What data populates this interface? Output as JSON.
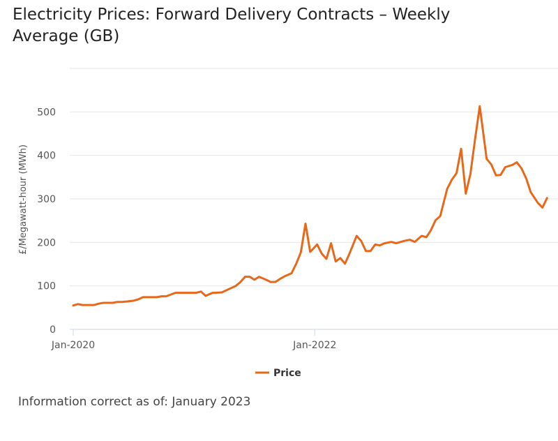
{
  "title": "Electricity Prices: Forward Delivery Contracts – Weekly Average (GB)",
  "footnote": "Information correct as of: January 2023",
  "colors": {
    "series": "#e8681a",
    "grid": "#e6e6e6",
    "axis": "#ccd6eb"
  },
  "chart_data": {
    "type": "line",
    "title": "Electricity Prices: Forward Delivery Contracts – Weekly Average (GB)",
    "xlabel": "",
    "ylabel": "£/Megawatt-hour (MWh)",
    "ylim": [
      0,
      600
    ],
    "yticks": [
      0,
      100,
      200,
      300,
      400,
      500
    ],
    "ytick_labels": [
      "0",
      "100",
      "200",
      "300",
      "400",
      "500"
    ],
    "xlim_weeks_from_jan2020": [
      0,
      205
    ],
    "xticks": [
      {
        "week": 0,
        "label": "Jan-2020"
      },
      {
        "week": 104,
        "label": "Jan-2022"
      }
    ],
    "grid": true,
    "legend": {
      "position": "bottom-center",
      "entries": [
        "Price"
      ]
    },
    "x_unit": "weeks since Jan-2020 (approx.)",
    "series": [
      {
        "name": "Price",
        "x": [
          0,
          2,
          4,
          7,
          9,
          11,
          13,
          15,
          17,
          19,
          21,
          23,
          26,
          28,
          30,
          32,
          34,
          36,
          38,
          40,
          42,
          44,
          46,
          48,
          51,
          53,
          55,
          57,
          60,
          61,
          64,
          66,
          68,
          70,
          72,
          74,
          76,
          78,
          80,
          83,
          85,
          87,
          89,
          91,
          94,
          96,
          98,
          100,
          102,
          105,
          107,
          109,
          111,
          113,
          115,
          117,
          119,
          122,
          124,
          126,
          128,
          130,
          132,
          134,
          137,
          139,
          141,
          143,
          145,
          147,
          150,
          152,
          154,
          156,
          158,
          161,
          163,
          165,
          167,
          169,
          171,
          173,
          175,
          178,
          180,
          182,
          184,
          186,
          189,
          191,
          193,
          195,
          197,
          200,
          202,
          204
        ],
        "values": [
          55,
          58,
          56,
          56,
          56,
          59,
          61,
          61,
          61,
          63,
          63,
          64,
          66,
          69,
          74,
          74,
          74,
          74,
          76,
          76,
          80,
          84,
          84,
          84,
          84,
          84,
          87,
          77,
          84,
          84,
          85,
          90,
          95,
          100,
          109,
          121,
          121,
          114,
          121,
          114,
          109,
          109,
          116,
          122,
          129,
          151,
          177,
          243,
          178,
          195,
          174,
          162,
          198,
          156,
          164,
          151,
          175,
          215,
          203,
          180,
          180,
          195,
          193,
          198,
          201,
          198,
          201,
          204,
          206,
          201,
          215,
          212,
          228,
          251,
          260,
          323,
          344,
          359,
          415,
          312,
          357,
          437,
          513,
          392,
          379,
          354,
          355,
          373,
          378,
          384,
          370,
          347,
          315,
          291,
          280,
          302
        ]
      }
    ]
  }
}
